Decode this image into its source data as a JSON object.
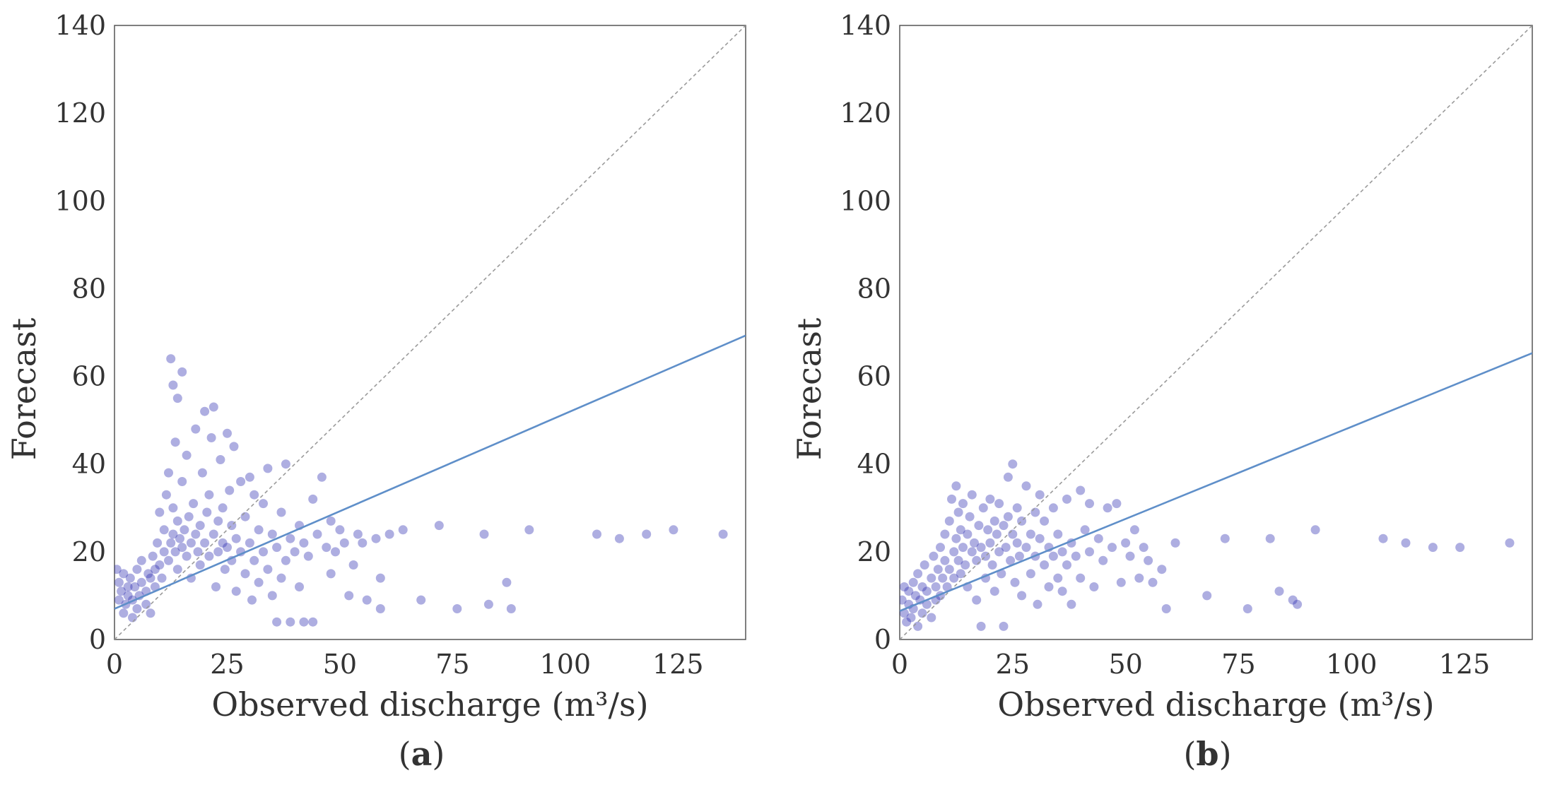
{
  "chart_data": [
    {
      "type": "scatter",
      "panel": "a",
      "caption_letter": "a",
      "xlabel": "Observed discharge (m³/s)",
      "ylabel": "Forecast",
      "xlim": [
        0,
        140
      ],
      "ylim": [
        0,
        140
      ],
      "xticks": [
        "0",
        "25",
        "50",
        "75",
        "100",
        "125"
      ],
      "yticks": [
        "0",
        "20",
        "40",
        "60",
        "80",
        "100",
        "120",
        "140"
      ],
      "regression_line": {
        "intercept": 7,
        "slope": 0.445
      },
      "identity_line": true,
      "points": [
        [
          0.5,
          16
        ],
        [
          1,
          13
        ],
        [
          1,
          9
        ],
        [
          1.5,
          11
        ],
        [
          2,
          15
        ],
        [
          2,
          6
        ],
        [
          2.5,
          8
        ],
        [
          3,
          12
        ],
        [
          3,
          10
        ],
        [
          3.5,
          14
        ],
        [
          4,
          5
        ],
        [
          4,
          9
        ],
        [
          4.5,
          12
        ],
        [
          5,
          16
        ],
        [
          5,
          7
        ],
        [
          5.5,
          10
        ],
        [
          6,
          13
        ],
        [
          6,
          18
        ],
        [
          7,
          11
        ],
        [
          7,
          8
        ],
        [
          7.5,
          15
        ],
        [
          8,
          14
        ],
        [
          8,
          6
        ],
        [
          8.5,
          19
        ],
        [
          9,
          12
        ],
        [
          9,
          16
        ],
        [
          9.5,
          22
        ],
        [
          10,
          17
        ],
        [
          10,
          29
        ],
        [
          10.5,
          14
        ],
        [
          11,
          20
        ],
        [
          11,
          25
        ],
        [
          11.5,
          33
        ],
        [
          12,
          18
        ],
        [
          12,
          38
        ],
        [
          12.5,
          22
        ],
        [
          12.5,
          64
        ],
        [
          13,
          24
        ],
        [
          13,
          30
        ],
        [
          13,
          58
        ],
        [
          13.5,
          20
        ],
        [
          13.5,
          45
        ],
        [
          14,
          27
        ],
        [
          14,
          16
        ],
        [
          14,
          55
        ],
        [
          14.5,
          23
        ],
        [
          15,
          21
        ],
        [
          15,
          36
        ],
        [
          15,
          61
        ],
        [
          15.5,
          25
        ],
        [
          16,
          19
        ],
        [
          16,
          42
        ],
        [
          16.5,
          28
        ],
        [
          17,
          22
        ],
        [
          17,
          14
        ],
        [
          17.5,
          31
        ],
        [
          18,
          24
        ],
        [
          18,
          48
        ],
        [
          18.5,
          20
        ],
        [
          19,
          26
        ],
        [
          19,
          17
        ],
        [
          19.5,
          38
        ],
        [
          20,
          22
        ],
        [
          20,
          52
        ],
        [
          20.5,
          29
        ],
        [
          21,
          19
        ],
        [
          21,
          33
        ],
        [
          21.5,
          46
        ],
        [
          22,
          24
        ],
        [
          22,
          53
        ],
        [
          22.5,
          12
        ],
        [
          23,
          27
        ],
        [
          23,
          20
        ],
        [
          23.5,
          41
        ],
        [
          24,
          22
        ],
        [
          24,
          30
        ],
        [
          24.5,
          16
        ],
        [
          25,
          21
        ],
        [
          25,
          47
        ],
        [
          25.5,
          34
        ],
        [
          26,
          18
        ],
        [
          26,
          26
        ],
        [
          26.5,
          44
        ],
        [
          27,
          23
        ],
        [
          27,
          11
        ],
        [
          28,
          36
        ],
        [
          28,
          20
        ],
        [
          29,
          28
        ],
        [
          29,
          15
        ],
        [
          30,
          37
        ],
        [
          30,
          22
        ],
        [
          30.5,
          9
        ],
        [
          31,
          33
        ],
        [
          31,
          18
        ],
        [
          32,
          25
        ],
        [
          32,
          13
        ],
        [
          33,
          31
        ],
        [
          33,
          20
        ],
        [
          34,
          16
        ],
        [
          34,
          39
        ],
        [
          35,
          24
        ],
        [
          35,
          10
        ],
        [
          36,
          21
        ],
        [
          36,
          4
        ],
        [
          37,
          29
        ],
        [
          37,
          14
        ],
        [
          38,
          18
        ],
        [
          38,
          40
        ],
        [
          39,
          23
        ],
        [
          39,
          4
        ],
        [
          40,
          20
        ],
        [
          41,
          26
        ],
        [
          41,
          12
        ],
        [
          42,
          22
        ],
        [
          42,
          4
        ],
        [
          43,
          19
        ],
        [
          44,
          32
        ],
        [
          44,
          4
        ],
        [
          45,
          24
        ],
        [
          46,
          37
        ],
        [
          47,
          21
        ],
        [
          48,
          27
        ],
        [
          48,
          15
        ],
        [
          49,
          20
        ],
        [
          50,
          25
        ],
        [
          51,
          22
        ],
        [
          52,
          10
        ],
        [
          53,
          17
        ],
        [
          54,
          24
        ],
        [
          55,
          22
        ],
        [
          56,
          9
        ],
        [
          58,
          23
        ],
        [
          59,
          14
        ],
        [
          59,
          7
        ],
        [
          61,
          24
        ],
        [
          64,
          25
        ],
        [
          68,
          9
        ],
        [
          72,
          26
        ],
        [
          76,
          7
        ],
        [
          82,
          24
        ],
        [
          83,
          8
        ],
        [
          87,
          13
        ],
        [
          88,
          7
        ],
        [
          92,
          25
        ],
        [
          107,
          24
        ],
        [
          112,
          23
        ],
        [
          118,
          24
        ],
        [
          124,
          25
        ],
        [
          135,
          24
        ]
      ]
    },
    {
      "type": "scatter",
      "panel": "b",
      "caption_letter": "b",
      "xlabel": "Observed discharge (m³/s)",
      "ylabel": "Forecast",
      "xlim": [
        0,
        140
      ],
      "ylim": [
        0,
        140
      ],
      "xticks": [
        "0",
        "25",
        "50",
        "75",
        "100",
        "125"
      ],
      "yticks": [
        "0",
        "20",
        "40",
        "60",
        "80",
        "100",
        "120",
        "140"
      ],
      "regression_line": {
        "intercept": 6.5,
        "slope": 0.42
      },
      "identity_line": true,
      "points": [
        [
          0.5,
          9
        ],
        [
          1,
          6
        ],
        [
          1,
          12
        ],
        [
          1.5,
          4
        ],
        [
          2,
          8
        ],
        [
          2,
          11
        ],
        [
          2.5,
          5
        ],
        [
          3,
          7
        ],
        [
          3,
          13
        ],
        [
          3.5,
          10
        ],
        [
          4,
          3
        ],
        [
          4,
          15
        ],
        [
          4.5,
          9
        ],
        [
          5,
          12
        ],
        [
          5,
          6
        ],
        [
          5.5,
          17
        ],
        [
          6,
          11
        ],
        [
          6,
          8
        ],
        [
          7,
          14
        ],
        [
          7,
          5
        ],
        [
          7.5,
          19
        ],
        [
          8,
          12
        ],
        [
          8,
          9
        ],
        [
          8.5,
          16
        ],
        [
          9,
          21
        ],
        [
          9,
          10
        ],
        [
          9.5,
          14
        ],
        [
          10,
          24
        ],
        [
          10,
          18
        ],
        [
          10.5,
          12
        ],
        [
          11,
          27
        ],
        [
          11,
          16
        ],
        [
          11.5,
          32
        ],
        [
          12,
          20
        ],
        [
          12,
          14
        ],
        [
          12.5,
          35
        ],
        [
          12.5,
          23
        ],
        [
          13,
          18
        ],
        [
          13,
          29
        ],
        [
          13.5,
          15
        ],
        [
          13.5,
          25
        ],
        [
          14,
          21
        ],
        [
          14,
          31
        ],
        [
          14.5,
          17
        ],
        [
          15,
          24
        ],
        [
          15,
          12
        ],
        [
          15.5,
          28
        ],
        [
          16,
          20
        ],
        [
          16,
          33
        ],
        [
          16.5,
          22
        ],
        [
          17,
          18
        ],
        [
          17,
          9
        ],
        [
          17.5,
          26
        ],
        [
          18,
          21
        ],
        [
          18,
          3
        ],
        [
          18.5,
          30
        ],
        [
          19,
          19
        ],
        [
          19,
          14
        ],
        [
          19.5,
          25
        ],
        [
          20,
          22
        ],
        [
          20,
          32
        ],
        [
          20.5,
          17
        ],
        [
          21,
          27
        ],
        [
          21,
          11
        ],
        [
          21.5,
          24
        ],
        [
          22,
          20
        ],
        [
          22,
          31
        ],
        [
          22.5,
          15
        ],
        [
          23,
          26
        ],
        [
          23,
          3
        ],
        [
          23.5,
          21
        ],
        [
          24,
          28
        ],
        [
          24,
          37
        ],
        [
          24.5,
          18
        ],
        [
          25,
          24
        ],
        [
          25,
          40
        ],
        [
          25.5,
          13
        ],
        [
          26,
          22
        ],
        [
          26,
          30
        ],
        [
          26.5,
          19
        ],
        [
          27,
          27
        ],
        [
          27,
          10
        ],
        [
          28,
          35
        ],
        [
          28,
          21
        ],
        [
          29,
          24
        ],
        [
          29,
          15
        ],
        [
          30,
          29
        ],
        [
          30,
          19
        ],
        [
          30.5,
          8
        ],
        [
          31,
          23
        ],
        [
          31,
          33
        ],
        [
          32,
          17
        ],
        [
          32,
          27
        ],
        [
          33,
          21
        ],
        [
          33,
          12
        ],
        [
          34,
          30
        ],
        [
          34,
          19
        ],
        [
          35,
          14
        ],
        [
          35,
          24
        ],
        [
          36,
          20
        ],
        [
          36,
          11
        ],
        [
          37,
          32
        ],
        [
          37,
          17
        ],
        [
          38,
          22
        ],
        [
          38,
          8
        ],
        [
          39,
          19
        ],
        [
          40,
          34
        ],
        [
          40,
          14
        ],
        [
          41,
          25
        ],
        [
          42,
          20
        ],
        [
          42,
          31
        ],
        [
          43,
          12
        ],
        [
          44,
          23
        ],
        [
          45,
          18
        ],
        [
          46,
          30
        ],
        [
          47,
          21
        ],
        [
          48,
          31
        ],
        [
          49,
          13
        ],
        [
          50,
          22
        ],
        [
          51,
          19
        ],
        [
          52,
          25
        ],
        [
          53,
          14
        ],
        [
          54,
          21
        ],
        [
          55,
          18
        ],
        [
          56,
          13
        ],
        [
          58,
          16
        ],
        [
          59,
          7
        ],
        [
          61,
          22
        ],
        [
          68,
          10
        ],
        [
          72,
          23
        ],
        [
          77,
          7
        ],
        [
          82,
          23
        ],
        [
          84,
          11
        ],
        [
          87,
          9
        ],
        [
          88,
          8
        ],
        [
          92,
          25
        ],
        [
          107,
          23
        ],
        [
          112,
          22
        ],
        [
          118,
          21
        ],
        [
          124,
          21
        ],
        [
          135,
          22
        ]
      ]
    }
  ]
}
